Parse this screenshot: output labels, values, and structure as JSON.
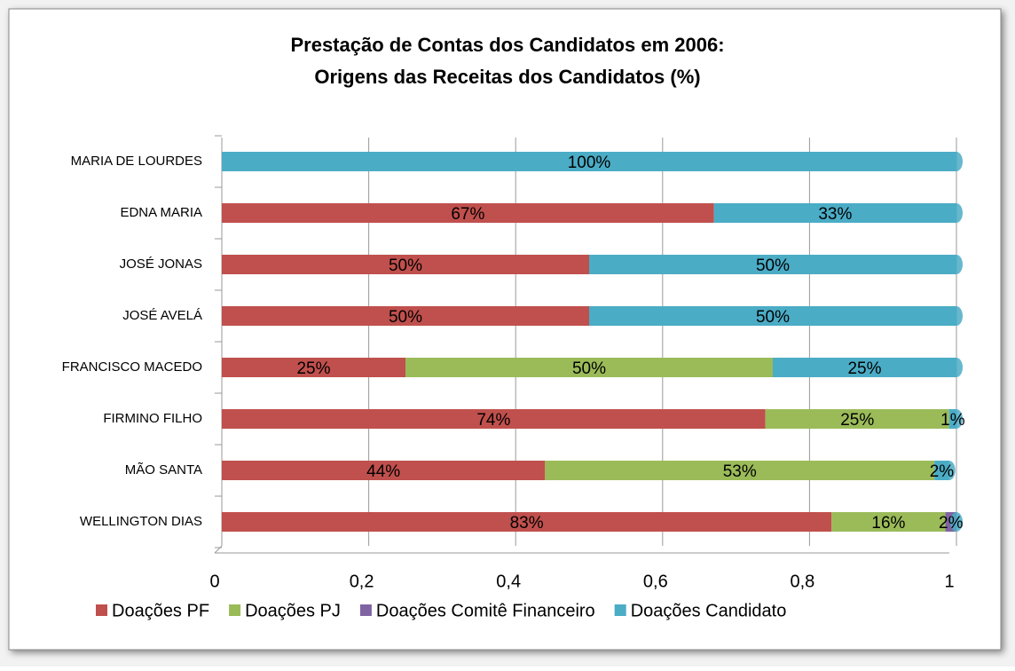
{
  "chart_data": {
    "type": "stacked-bar-horizontal",
    "title": [
      "Prestação de Contas dos Candidatos em 2006:",
      "Origens das Receitas dos Candidatos (%)"
    ],
    "categories": [
      "MARIA DE LOURDES",
      "EDNA MARIA",
      "JOSÉ JONAS",
      "JOSÉ AVELÁ",
      "FRANCISCO MACEDO",
      "FIRMINO FILHO",
      "MÃO SANTA",
      "WELLINGTON DIAS"
    ],
    "series": [
      {
        "name": "Doações PF",
        "color": "#c0504d",
        "values": [
          0,
          0.67,
          0.5,
          0.5,
          0.25,
          0.74,
          0.44,
          0.83
        ],
        "value_labels": [
          null,
          "67%",
          "50%",
          "50%",
          "25%",
          "74%",
          "44%",
          "83%"
        ]
      },
      {
        "name": "Doações PJ",
        "color": "#9bbb59",
        "values": [
          0,
          0,
          0,
          0,
          0.5,
          0.25,
          0.53,
          0.155
        ],
        "value_labels": [
          null,
          null,
          null,
          null,
          "50%",
          "25%",
          "53%",
          "16%"
        ]
      },
      {
        "name": "Doações Comitê Financeiro",
        "color": "#8064a2",
        "values": [
          0,
          0,
          0,
          0,
          0,
          0,
          0,
          0.015
        ],
        "value_labels": [
          null,
          null,
          null,
          null,
          null,
          null,
          null,
          "2%"
        ]
      },
      {
        "name": "Doações Candidato",
        "color": "#4bacc6",
        "values": [
          1,
          0.33,
          0.5,
          0.5,
          0.25,
          0.01,
          0.02,
          0
        ],
        "value_labels": [
          "100%",
          "33%",
          "50%",
          "50%",
          "25%",
          "1%",
          "2%",
          null
        ]
      }
    ],
    "xlim": [
      0,
      1
    ],
    "xticks": [
      0,
      {
        "value": 0.2,
        "label": "0,2"
      },
      {
        "value": 0.4,
        "label": "0,4"
      },
      {
        "value": 0.6,
        "label": "0,6"
      },
      {
        "value": 0.8,
        "label": "0,8"
      },
      1
    ],
    "grid": true,
    "legend": "bottom"
  }
}
